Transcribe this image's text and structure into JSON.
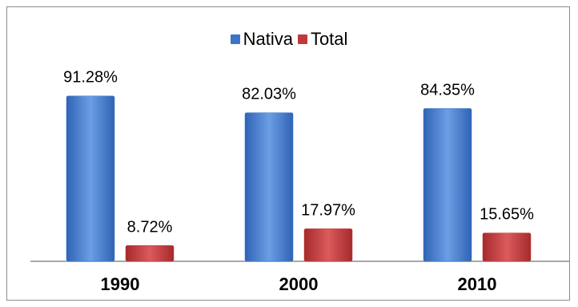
{
  "colors": {
    "nativa": "#3b74c8",
    "total": "#c0393b",
    "axis": "#8c8c8c"
  },
  "chart_data": {
    "type": "bar",
    "categories": [
      "1990",
      "2000",
      "2010"
    ],
    "series": [
      {
        "name": "Nativa",
        "values": [
          91.28,
          82.03,
          84.35
        ],
        "labels": [
          "91.28%",
          "82.03%",
          "84.35%"
        ]
      },
      {
        "name": "Total",
        "values": [
          8.72,
          17.97,
          15.65
        ],
        "labels": [
          "8.72%",
          "17.97%",
          "15.65%"
        ]
      }
    ],
    "ylim": [
      0,
      100
    ],
    "grid": false,
    "legend": "top-center"
  }
}
